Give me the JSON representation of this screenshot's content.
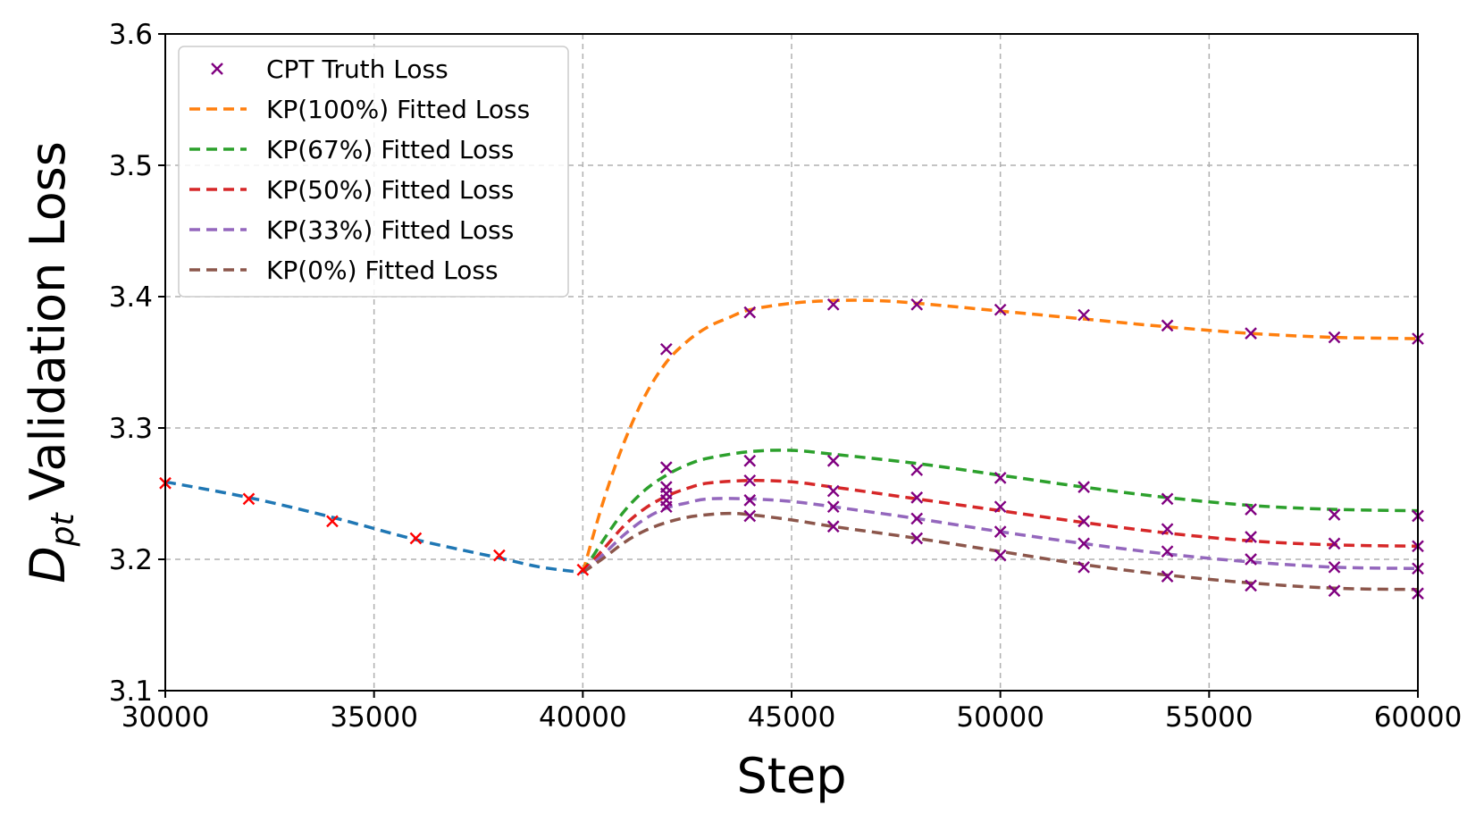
{
  "chart_data": {
    "type": "line",
    "xlabel": "Step",
    "ylabel_main": "D",
    "ylabel_sub": "pt",
    "ylabel_rest": "Validation Loss",
    "xlim": [
      30000,
      60000
    ],
    "ylim": [
      3.1,
      3.6
    ],
    "x_ticks": [
      30000,
      35000,
      40000,
      45000,
      50000,
      55000,
      60000
    ],
    "x_tick_labels": [
      "30000",
      "35000",
      "40000",
      "45000",
      "50000",
      "55000",
      "60000"
    ],
    "y_ticks": [
      3.1,
      3.2,
      3.3,
      3.4,
      3.5,
      3.6
    ],
    "y_tick_labels": [
      "3.1",
      "3.2",
      "3.3",
      "3.4",
      "3.5",
      "3.6"
    ],
    "grid": true,
    "legend_position": "top-left",
    "colors": {
      "pretrain": "#1f77b4",
      "truth_marker": "#800080",
      "pretrain_marker": "#ff0000"
    },
    "pretrain_fit": {
      "x": [
        30000,
        32000,
        34000,
        36000,
        38000,
        39000,
        40000
      ],
      "y": [
        3.259,
        3.247,
        3.232,
        3.215,
        3.201,
        3.194,
        3.19
      ]
    },
    "pretrain_truth": {
      "x": [
        30000,
        32000,
        34000,
        36000,
        38000,
        40000
      ],
      "y": [
        3.258,
        3.246,
        3.229,
        3.216,
        3.203,
        3.192
      ]
    },
    "series": [
      {
        "name": "KP(100%) Fitted Loss",
        "color": "#ff7f0e",
        "x": [
          40000,
          40500,
          41000,
          41500,
          42000,
          42500,
          43000,
          43500,
          44000,
          45000,
          46000,
          47000,
          48000,
          50000,
          52000,
          54000,
          56000,
          58000,
          60000
        ],
        "y": [
          3.19,
          3.245,
          3.29,
          3.325,
          3.35,
          3.366,
          3.377,
          3.384,
          3.39,
          3.395,
          3.397,
          3.397,
          3.395,
          3.389,
          3.383,
          3.377,
          3.372,
          3.369,
          3.368
        ],
        "truth_x": [
          42000,
          44000,
          46000,
          48000,
          50000,
          52000,
          54000,
          56000,
          58000,
          60000
        ],
        "truth_y": [
          3.36,
          3.388,
          3.394,
          3.394,
          3.39,
          3.386,
          3.378,
          3.372,
          3.369,
          3.368
        ]
      },
      {
        "name": "KP(67%) Fitted Loss",
        "color": "#2ca02c",
        "x": [
          40000,
          40500,
          41000,
          41500,
          42000,
          42500,
          43000,
          44000,
          45000,
          46000,
          48000,
          50000,
          52000,
          54000,
          56000,
          58000,
          60000
        ],
        "y": [
          3.19,
          3.215,
          3.237,
          3.253,
          3.264,
          3.272,
          3.277,
          3.282,
          3.283,
          3.28,
          3.273,
          3.264,
          3.255,
          3.247,
          3.241,
          3.238,
          3.237
        ],
        "truth_x": [
          42000,
          42000,
          44000,
          46000,
          48000,
          50000,
          52000,
          54000,
          56000,
          58000,
          60000
        ],
        "truth_y": [
          3.27,
          3.255,
          3.275,
          3.275,
          3.268,
          3.262,
          3.255,
          3.246,
          3.238,
          3.234,
          3.233
        ]
      },
      {
        "name": "KP(50%) Fitted Loss",
        "color": "#d62728",
        "x": [
          40000,
          40500,
          41000,
          41500,
          42000,
          42500,
          43000,
          44000,
          45000,
          46000,
          48000,
          50000,
          52000,
          54000,
          56000,
          58000,
          60000
        ],
        "y": [
          3.19,
          3.208,
          3.226,
          3.239,
          3.248,
          3.254,
          3.258,
          3.26,
          3.259,
          3.255,
          3.246,
          3.237,
          3.228,
          3.22,
          3.214,
          3.211,
          3.21
        ],
        "truth_x": [
          42000,
          44000,
          46000,
          48000,
          50000,
          52000,
          54000,
          56000,
          58000,
          60000
        ],
        "truth_y": [
          3.25,
          3.26,
          3.252,
          3.247,
          3.24,
          3.229,
          3.223,
          3.217,
          3.212,
          3.21
        ]
      },
      {
        "name": "KP(33%) Fitted Loss",
        "color": "#9467bd",
        "x": [
          40000,
          40500,
          41000,
          41500,
          42000,
          42500,
          43000,
          44000,
          45000,
          46000,
          48000,
          50000,
          52000,
          54000,
          56000,
          58000,
          60000
        ],
        "y": [
          3.19,
          3.204,
          3.219,
          3.231,
          3.239,
          3.243,
          3.246,
          3.246,
          3.244,
          3.24,
          3.231,
          3.221,
          3.212,
          3.204,
          3.198,
          3.194,
          3.193
        ],
        "truth_x": [
          42000,
          44000,
          46000,
          48000,
          50000,
          52000,
          54000,
          56000,
          58000,
          60000
        ],
        "truth_y": [
          3.245,
          3.245,
          3.24,
          3.231,
          3.221,
          3.212,
          3.206,
          3.2,
          3.194,
          3.193
        ]
      },
      {
        "name": "KP(0%) Fitted Loss",
        "color": "#8c564b",
        "x": [
          40000,
          40500,
          41000,
          41500,
          42000,
          42500,
          43000,
          43500,
          44000,
          45000,
          46000,
          48000,
          50000,
          52000,
          54000,
          56000,
          58000,
          60000
        ],
        "y": [
          3.19,
          3.201,
          3.213,
          3.222,
          3.228,
          3.232,
          3.234,
          3.235,
          3.234,
          3.23,
          3.225,
          3.216,
          3.206,
          3.196,
          3.188,
          3.182,
          3.178,
          3.177
        ],
        "truth_x": [
          42000,
          44000,
          46000,
          48000,
          50000,
          52000,
          54000,
          56000,
          58000,
          60000
        ],
        "truth_y": [
          3.24,
          3.233,
          3.225,
          3.216,
          3.203,
          3.194,
          3.187,
          3.18,
          3.176,
          3.174
        ]
      }
    ],
    "legend": [
      {
        "label": "CPT Truth Loss",
        "kind": "marker",
        "color": "#800080"
      },
      {
        "label": "KP(100%) Fitted Loss",
        "kind": "dash",
        "color": "#ff7f0e"
      },
      {
        "label": "KP(67%) Fitted Loss",
        "kind": "dash",
        "color": "#2ca02c"
      },
      {
        "label": "KP(50%) Fitted Loss",
        "kind": "dash",
        "color": "#d62728"
      },
      {
        "label": "KP(33%) Fitted Loss",
        "kind": "dash",
        "color": "#9467bd"
      },
      {
        "label": "KP(0%) Fitted Loss",
        "kind": "dash",
        "color": "#8c564b"
      }
    ]
  }
}
